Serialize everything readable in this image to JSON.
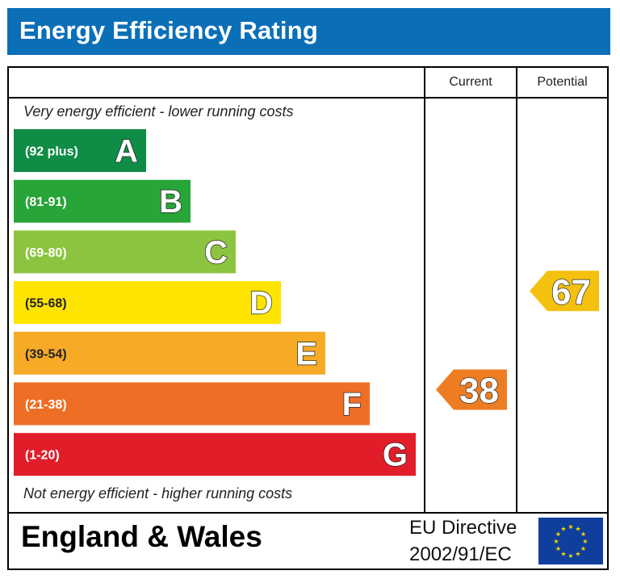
{
  "header": {
    "title": "Energy Efficiency Rating"
  },
  "columns": {
    "current": "Current",
    "potential": "Potential"
  },
  "notes": {
    "top": "Very energy efficient - lower running costs",
    "bottom": "Not energy efficient - higher running costs"
  },
  "chart_data": {
    "type": "bar",
    "title": "Energy Efficiency Rating",
    "categories": [
      "A",
      "B",
      "C",
      "D",
      "E",
      "F",
      "G"
    ],
    "bands": [
      {
        "letter": "A",
        "range": "(92 plus)",
        "min": 92,
        "max": 100,
        "color": "#0f8c45"
      },
      {
        "letter": "B",
        "range": "(81-91)",
        "min": 81,
        "max": 91,
        "color": "#27a538"
      },
      {
        "letter": "C",
        "range": "(69-80)",
        "min": 69,
        "max": 80,
        "color": "#8cc43f"
      },
      {
        "letter": "D",
        "range": "(55-68)",
        "min": 55,
        "max": 68,
        "color": "#ffe400"
      },
      {
        "letter": "E",
        "range": "(39-54)",
        "min": 39,
        "max": 54,
        "color": "#f6aa26"
      },
      {
        "letter": "F",
        "range": "(21-38)",
        "min": 21,
        "max": 38,
        "color": "#ee6e25"
      },
      {
        "letter": "G",
        "range": "(1-20)",
        "min": 1,
        "max": 20,
        "color": "#e21d2a"
      }
    ],
    "current": {
      "value": 38,
      "band": "F",
      "color": "#ee7d22"
    },
    "potential": {
      "value": 67,
      "band": "D",
      "color": "#f4c10f"
    }
  },
  "footer": {
    "region": "England & Wales",
    "directive_line1": "EU Directive",
    "directive_line2": "2002/91/EC",
    "flag_icon": "eu-flag-icon"
  }
}
